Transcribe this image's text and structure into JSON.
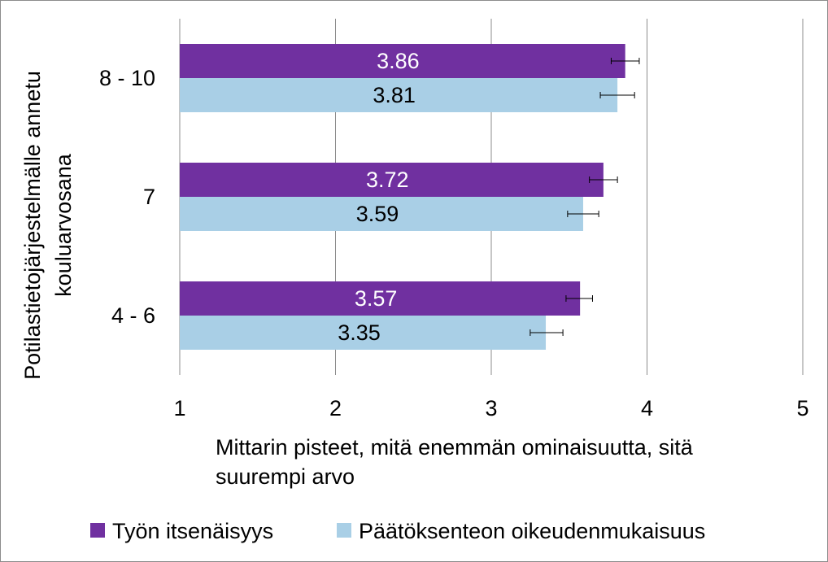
{
  "chart_data": {
    "type": "bar",
    "orientation": "horizontal",
    "categories": [
      "8 - 10",
      "7",
      "4 - 6"
    ],
    "series": [
      {
        "name": "Työn itsenäisyys",
        "color": "#7030A0",
        "label_color": "#ffffff",
        "values": [
          3.86,
          3.72,
          3.57
        ],
        "labels": [
          "3.86",
          "3.72",
          "3.57"
        ],
        "error_low": [
          3.77,
          3.63,
          3.48
        ],
        "error_high": [
          3.95,
          3.81,
          3.65
        ]
      },
      {
        "name": "Päätöksenteon oikeudenmukaisuus",
        "color": "#A9CFE6",
        "label_color": "#000000",
        "values": [
          3.81,
          3.59,
          3.35
        ],
        "labels": [
          "3.81",
          "3.59",
          "3.35"
        ],
        "error_low": [
          3.7,
          3.49,
          3.25
        ],
        "error_high": [
          3.92,
          3.69,
          3.46
        ]
      }
    ],
    "xlim": [
      1,
      5
    ],
    "xticks": [
      1,
      2,
      3,
      4,
      5
    ],
    "xtick_labels": [
      "1",
      "2",
      "3",
      "4",
      "5"
    ],
    "xlabel_lines": [
      "Mittarin pisteet, mitä enemmän ominaisuutta, sitä",
      "suurempi arvo"
    ],
    "ylabel_lines": [
      "Potilastietojärjestelmälle  annetu",
      "kouluarvosana"
    ],
    "vertical_grid": true,
    "legend_position": "bottom"
  }
}
